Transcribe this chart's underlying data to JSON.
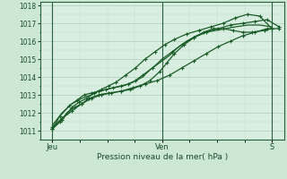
{
  "xlabel": "Pression niveau de la mer( hPa )",
  "background_color": "#cce8d4",
  "plot_bg_color": "#d8eee0",
  "grid_color_major": "#b0ccbc",
  "grid_color_minor": "#c4deca",
  "line_color": "#1a5c28",
  "ylim": [
    1010.5,
    1018.2
  ],
  "ytick_values": [
    1011,
    1012,
    1013,
    1014,
    1015,
    1016,
    1017,
    1018
  ],
  "xtick_labels": [
    "Jeu",
    "Ven",
    "S"
  ],
  "xtick_positions": [
    0.07,
    0.52,
    0.97
  ],
  "series": [
    {
      "x": [
        0.07,
        0.1,
        0.13,
        0.16,
        0.19,
        0.22,
        0.26,
        0.3,
        0.35,
        0.4,
        0.45,
        0.5,
        0.55,
        0.6,
        0.65,
        0.7,
        0.75,
        0.8,
        0.85,
        0.9,
        0.95,
        1.0
      ],
      "y": [
        1011.1,
        1011.5,
        1012.0,
        1012.3,
        1012.5,
        1012.8,
        1013.0,
        1013.1,
        1013.2,
        1013.4,
        1013.6,
        1013.8,
        1014.1,
        1014.5,
        1014.9,
        1015.3,
        1015.7,
        1016.0,
        1016.3,
        1016.5,
        1016.7,
        1016.7
      ],
      "marker": "+"
    },
    {
      "x": [
        0.07,
        0.11,
        0.15,
        0.19,
        0.23,
        0.27,
        0.31,
        0.35,
        0.39,
        0.43,
        0.47,
        0.51,
        0.54,
        0.57,
        0.61,
        0.65,
        0.69,
        0.73,
        0.77,
        0.81,
        0.85,
        0.89,
        0.94,
        0.97
      ],
      "y": [
        1011.2,
        1011.7,
        1012.1,
        1012.5,
        1012.8,
        1013.0,
        1013.1,
        1013.2,
        1013.3,
        1013.5,
        1013.8,
        1014.3,
        1014.8,
        1015.3,
        1015.8,
        1016.2,
        1016.5,
        1016.7,
        1016.7,
        1016.6,
        1016.5,
        1016.5,
        1016.6,
        1016.7
      ],
      "marker": "+"
    },
    {
      "x": [
        0.07,
        0.1,
        0.14,
        0.17,
        0.2,
        0.23,
        0.26,
        0.29,
        0.32,
        0.35,
        0.38,
        0.41,
        0.44,
        0.48,
        0.52,
        0.56,
        0.6,
        0.65,
        0.7,
        0.75,
        0.8,
        0.85,
        0.9,
        0.95,
        1.0
      ],
      "y": [
        1011.1,
        1011.8,
        1012.4,
        1012.7,
        1013.0,
        1013.1,
        1013.2,
        1013.3,
        1013.4,
        1013.5,
        1013.6,
        1013.8,
        1014.1,
        1014.5,
        1015.0,
        1015.4,
        1015.8,
        1016.2,
        1016.5,
        1016.7,
        1016.9,
        1017.0,
        1017.1,
        1017.2,
        1016.8
      ],
      "marker": "+"
    },
    {
      "x": [
        0.07,
        0.11,
        0.15,
        0.19,
        0.23,
        0.26,
        0.29,
        0.32,
        0.36,
        0.4,
        0.44,
        0.47,
        0.51,
        0.55,
        0.58,
        0.62,
        0.66,
        0.7,
        0.74,
        0.78,
        0.82,
        0.87,
        0.92,
        0.97
      ],
      "y": [
        1011.3,
        1012.0,
        1012.5,
        1012.8,
        1013.0,
        1013.2,
        1013.3,
        1013.4,
        1013.5,
        1013.7,
        1014.0,
        1014.4,
        1014.8,
        1015.2,
        1015.6,
        1016.0,
        1016.3,
        1016.5,
        1016.6,
        1016.7,
        1016.8,
        1016.9,
        1016.9,
        1016.8
      ],
      "marker": null
    },
    {
      "x": [
        0.07,
        0.11,
        0.15,
        0.18,
        0.21,
        0.24,
        0.27,
        0.3,
        0.33,
        0.37,
        0.41,
        0.45,
        0.49,
        0.53,
        0.57,
        0.62,
        0.67,
        0.72,
        0.77,
        0.82,
        0.87,
        0.92,
        0.97
      ],
      "y": [
        1011.1,
        1011.6,
        1012.3,
        1012.6,
        1012.8,
        1013.1,
        1013.3,
        1013.5,
        1013.7,
        1014.1,
        1014.5,
        1015.0,
        1015.4,
        1015.8,
        1016.1,
        1016.4,
        1016.6,
        1016.8,
        1017.0,
        1017.3,
        1017.5,
        1017.4,
        1016.7
      ],
      "marker": "+"
    }
  ]
}
